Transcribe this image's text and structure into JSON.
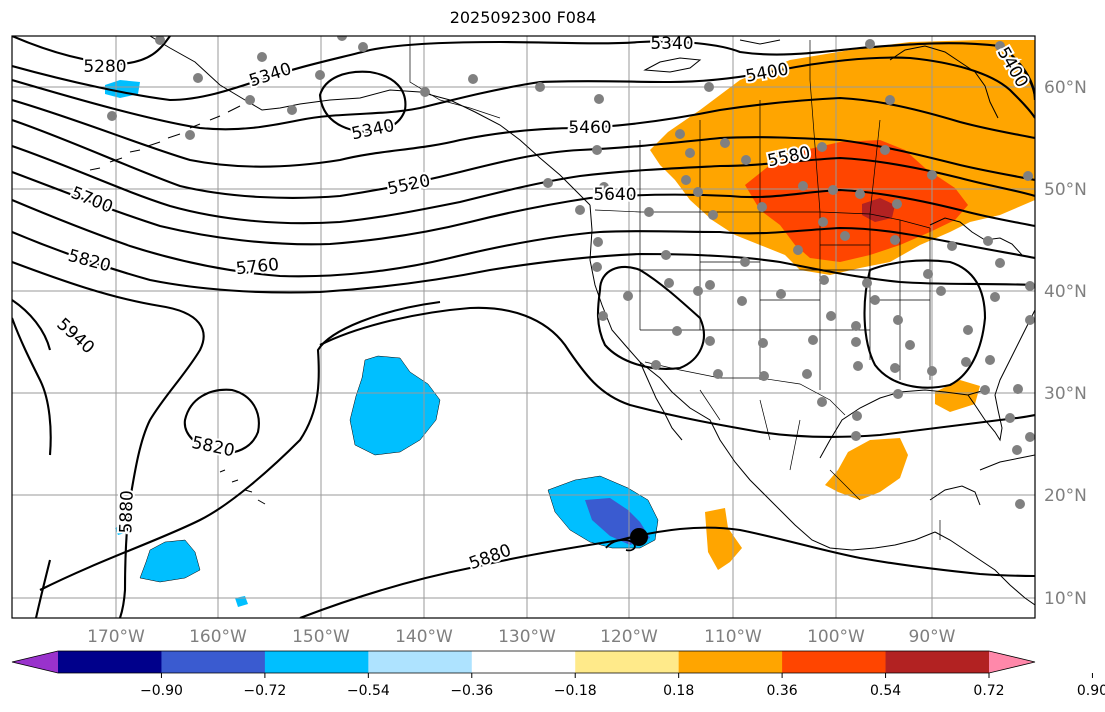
{
  "title": "2025092300 F084",
  "map": {
    "lon_labels": [
      "170°W",
      "160°W",
      "150°W",
      "140°W",
      "130°W",
      "120°W",
      "110°W",
      "100°W",
      "90°W"
    ],
    "lat_labels": [
      "60°N",
      "50°N",
      "40°N",
      "30°N",
      "20°N",
      "10°N"
    ],
    "contour_labels": [
      {
        "id": "c5280",
        "text": "5280"
      },
      {
        "id": "c5340a",
        "text": "5340"
      },
      {
        "id": "c5340b",
        "text": "5340"
      },
      {
        "id": "c5340c",
        "text": "5340"
      },
      {
        "id": "c5400",
        "text": "5400"
      },
      {
        "id": "c5400b",
        "text": "5400"
      },
      {
        "id": "c5460",
        "text": "5460"
      },
      {
        "id": "c5520",
        "text": "5520"
      },
      {
        "id": "c5580",
        "text": "5580"
      },
      {
        "id": "c5640",
        "text": "5640"
      },
      {
        "id": "c5700",
        "text": "5700"
      },
      {
        "id": "c5760",
        "text": "5760"
      },
      {
        "id": "c5820a",
        "text": "5820"
      },
      {
        "id": "c5820b",
        "text": "5820"
      },
      {
        "id": "c5880a",
        "text": "5880"
      },
      {
        "id": "c5880b",
        "text": "5880"
      },
      {
        "id": "c5940",
        "text": "5940"
      }
    ]
  },
  "colorbar": {
    "ticks": [
      "−0.90",
      "−0.72",
      "−0.54",
      "−0.36",
      "−0.18",
      "0.18",
      "0.36",
      "0.54",
      "0.72",
      "0.90"
    ],
    "colors": [
      "#9932cc",
      "#00008b",
      "#3a5bd0",
      "#00bfff",
      "#aee3ff",
      "#ffffff",
      "#ffea8a",
      "#ffa500",
      "#ff4500",
      "#b22222",
      "#ff88aa"
    ]
  }
}
